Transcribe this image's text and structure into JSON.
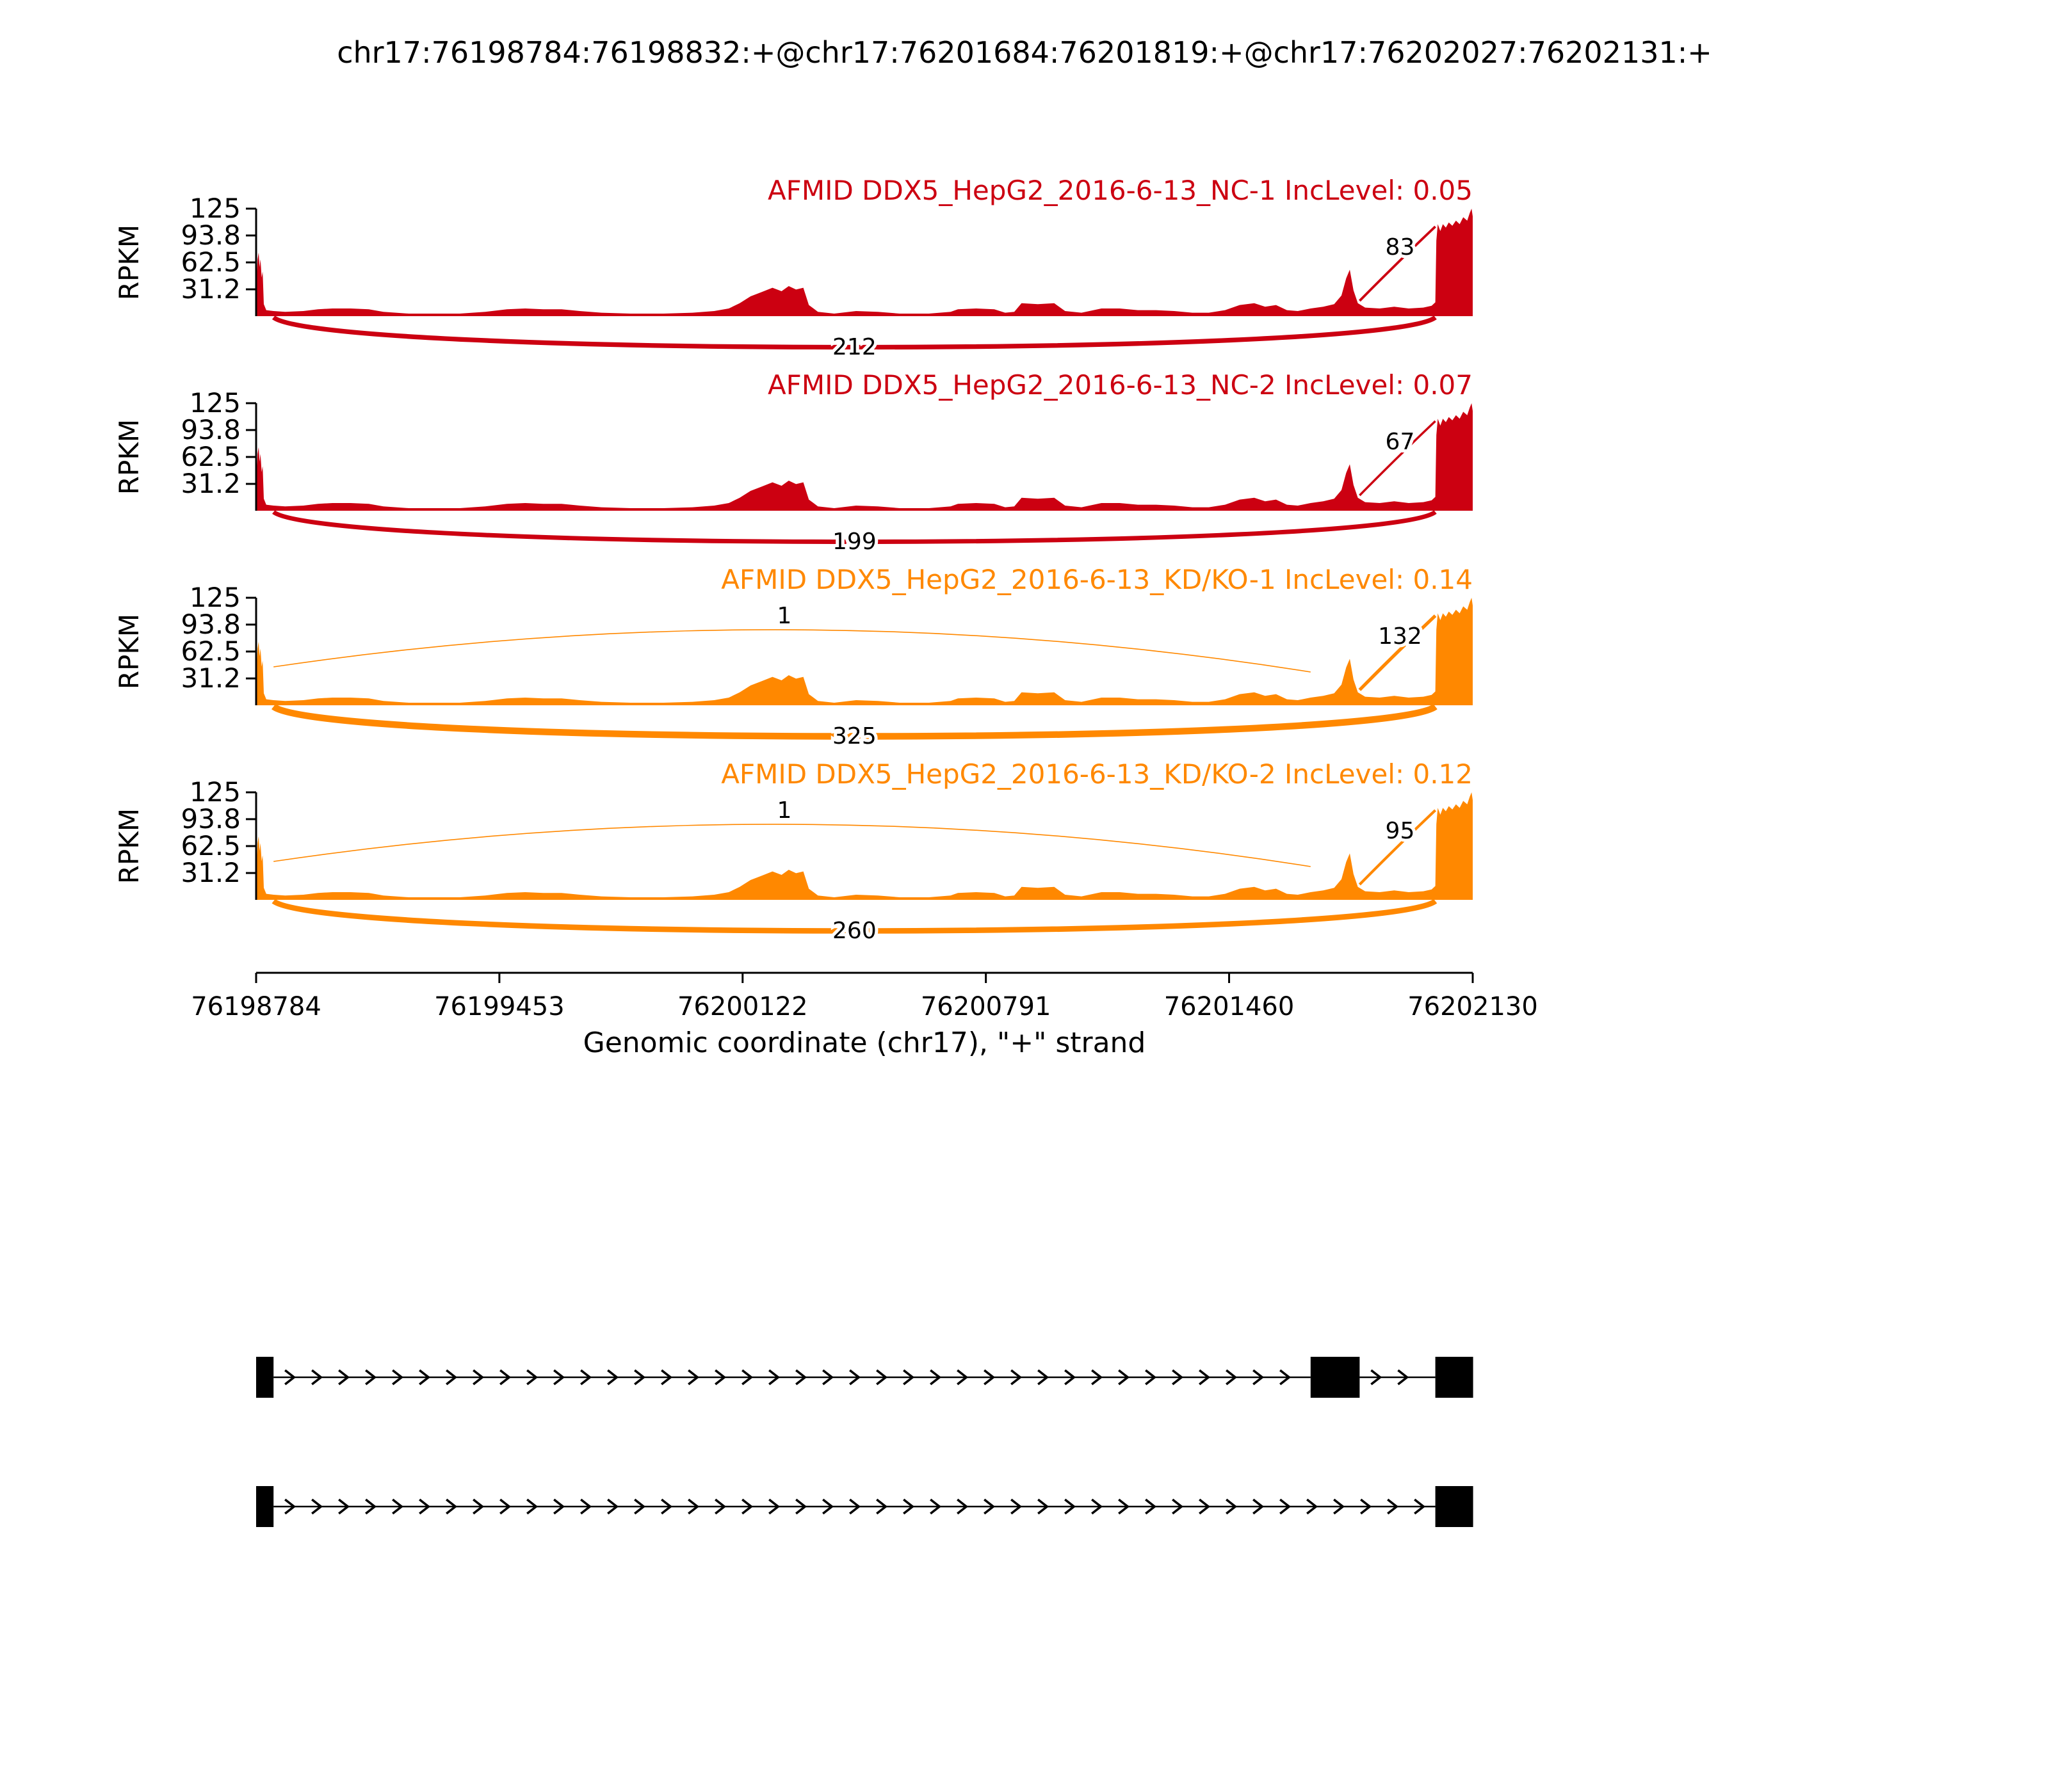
{
  "title": "chr17:76198784:76198832:+@chr17:76201684:76201819:+@chr17:76202027:76202131:+",
  "colors": {
    "nc_group": "#CC0011",
    "kd_group": "#FF8800",
    "gene_model": "#000000"
  },
  "chart_data": {
    "type": "sashimi",
    "title": "chr17:76198784:76198832:+@chr17:76201684:76201819:+@chr17:76202027:76202131:+",
    "xlabel": "Genomic coordinate (chr17), \"+\" strand",
    "ylabel": "RPKM",
    "ylim": [
      0,
      125
    ],
    "x_domain": [
      76198784,
      76202130
    ],
    "x_ticks": [
      {
        "label": "76198784",
        "value": 76198784
      },
      {
        "label": "76199453",
        "value": 76199453
      },
      {
        "label": "76200122",
        "value": 76200122
      },
      {
        "label": "76200791",
        "value": 76200791
      },
      {
        "label": "76201460",
        "value": 76201460
      },
      {
        "label": "76202130",
        "value": 76202130
      }
    ],
    "y_ticks": [
      {
        "label": "125",
        "value": 125
      },
      {
        "label": "93.8",
        "value": 93.8
      },
      {
        "label": "62.5",
        "value": 62.5
      },
      {
        "label": "31.2",
        "value": 31.2
      }
    ],
    "tracks": [
      {
        "id": "NC-1",
        "label": "AFMID DDX5_HepG2_2016-6-13_NC-1 IncLevel: 0.05",
        "inc_level": 0.05,
        "color": "#CC0011",
        "junctions": [
          {
            "from": 76198832,
            "to": 76202027,
            "count": 212,
            "shape": "bottom"
          },
          {
            "from": 76201819,
            "to": 76202027,
            "count": 83,
            "shape": "top-right"
          }
        ]
      },
      {
        "id": "NC-2",
        "label": "AFMID DDX5_HepG2_2016-6-13_NC-2 IncLevel: 0.07",
        "inc_level": 0.07,
        "color": "#CC0011",
        "junctions": [
          {
            "from": 76198832,
            "to": 76202027,
            "count": 199,
            "shape": "bottom"
          },
          {
            "from": 76201819,
            "to": 76202027,
            "count": 67,
            "shape": "top-right"
          }
        ]
      },
      {
        "id": "KD-KO-1",
        "label": "AFMID DDX5_HepG2_2016-6-13_KD/KO-1 IncLevel: 0.14",
        "inc_level": 0.14,
        "color": "#FF8800",
        "junctions": [
          {
            "from": 76198832,
            "to": 76202027,
            "count": 325,
            "shape": "bottom"
          },
          {
            "from": 76198832,
            "to": 76201684,
            "count": 1,
            "shape": "top-long"
          },
          {
            "from": 76201819,
            "to": 76202027,
            "count": 132,
            "shape": "top-right"
          }
        ]
      },
      {
        "id": "KD-KO-2",
        "label": "AFMID DDX5_HepG2_2016-6-13_KD/KO-2 IncLevel: 0.12",
        "inc_level": 0.12,
        "color": "#FF8800",
        "junctions": [
          {
            "from": 76198832,
            "to": 76202027,
            "count": 260,
            "shape": "bottom"
          },
          {
            "from": 76198832,
            "to": 76201684,
            "count": 1,
            "shape": "top-long"
          },
          {
            "from": 76201819,
            "to": 76202027,
            "count": 95,
            "shape": "top-right"
          }
        ]
      }
    ],
    "coverage_profile": [
      [
        0,
        0
      ],
      [
        2,
        46
      ],
      [
        4,
        66
      ],
      [
        7,
        74
      ],
      [
        9,
        57
      ],
      [
        12,
        66
      ],
      [
        15,
        45
      ],
      [
        18,
        52
      ],
      [
        21,
        14
      ],
      [
        28,
        7
      ],
      [
        48,
        6
      ],
      [
        80,
        5
      ],
      [
        130,
        6
      ],
      [
        170,
        8
      ],
      [
        210,
        9
      ],
      [
        260,
        9
      ],
      [
        310,
        8
      ],
      [
        350,
        5
      ],
      [
        420,
        3
      ],
      [
        500,
        3
      ],
      [
        560,
        3
      ],
      [
        630,
        5
      ],
      [
        690,
        8
      ],
      [
        740,
        9
      ],
      [
        790,
        8
      ],
      [
        840,
        8
      ],
      [
        890,
        6
      ],
      [
        950,
        4
      ],
      [
        1030,
        3
      ],
      [
        1120,
        3
      ],
      [
        1200,
        4
      ],
      [
        1260,
        6
      ],
      [
        1300,
        9
      ],
      [
        1330,
        15
      ],
      [
        1360,
        23
      ],
      [
        1390,
        28
      ],
      [
        1420,
        33
      ],
      [
        1445,
        29
      ],
      [
        1465,
        35
      ],
      [
        1485,
        31
      ],
      [
        1505,
        33
      ],
      [
        1520,
        13
      ],
      [
        1545,
        5
      ],
      [
        1590,
        3
      ],
      [
        1650,
        6
      ],
      [
        1710,
        5
      ],
      [
        1770,
        3
      ],
      [
        1850,
        3
      ],
      [
        1910,
        5
      ],
      [
        1930,
        8
      ],
      [
        1980,
        9
      ],
      [
        2030,
        8
      ],
      [
        2060,
        4
      ],
      [
        2085,
        5
      ],
      [
        2105,
        15
      ],
      [
        2150,
        14
      ],
      [
        2195,
        15
      ],
      [
        2225,
        6
      ],
      [
        2270,
        4
      ],
      [
        2325,
        9
      ],
      [
        2375,
        9
      ],
      [
        2425,
        7
      ],
      [
        2475,
        7
      ],
      [
        2525,
        6
      ],
      [
        2575,
        4
      ],
      [
        2620,
        4
      ],
      [
        2665,
        7
      ],
      [
        2705,
        13
      ],
      [
        2745,
        15
      ],
      [
        2775,
        11
      ],
      [
        2805,
        13
      ],
      [
        2835,
        7
      ],
      [
        2865,
        6
      ],
      [
        2900,
        9
      ],
      [
        2935,
        11
      ],
      [
        2965,
        14
      ],
      [
        2985,
        24
      ],
      [
        2998,
        44
      ],
      [
        3008,
        54
      ],
      [
        3018,
        30
      ],
      [
        3030,
        15
      ],
      [
        3050,
        10
      ],
      [
        3090,
        9
      ],
      [
        3130,
        11
      ],
      [
        3170,
        9
      ],
      [
        3210,
        10
      ],
      [
        3233,
        12
      ],
      [
        3243,
        16
      ],
      [
        3246,
        88
      ],
      [
        3250,
        107
      ],
      [
        3257,
        99
      ],
      [
        3264,
        107
      ],
      [
        3272,
        103
      ],
      [
        3280,
        109
      ],
      [
        3290,
        105
      ],
      [
        3300,
        111
      ],
      [
        3310,
        107
      ],
      [
        3320,
        115
      ],
      [
        3331,
        111
      ],
      [
        3338,
        120
      ],
      [
        3343,
        125
      ],
      [
        3346,
        116
      ]
    ],
    "transcripts": [
      {
        "exons": [
          [
            76198784,
            76198832
          ],
          [
            76201684,
            76201819
          ],
          [
            76202027,
            76202131
          ]
        ]
      },
      {
        "exons": [
          [
            76198784,
            76198832
          ],
          [
            76202027,
            76202131
          ]
        ]
      }
    ]
  }
}
